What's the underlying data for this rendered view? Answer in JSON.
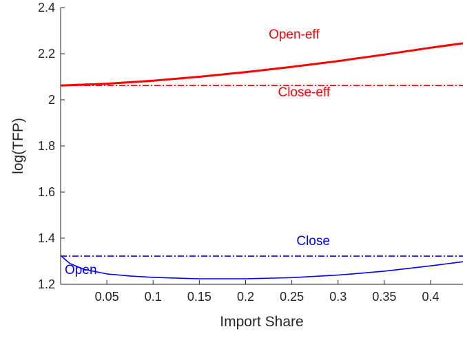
{
  "chart_data": {
    "type": "line",
    "xlabel": "Import Share",
    "ylabel": "log(TFP)",
    "xlim": [
      0.0,
      0.435
    ],
    "ylim": [
      1.2,
      2.4
    ],
    "xticks": [
      0.05,
      0.1,
      0.15,
      0.2,
      0.25,
      0.3,
      0.35,
      0.4
    ],
    "xtick_labels": [
      "0.05",
      "0.1",
      "0.15",
      "0.2",
      "0.25",
      "0.3",
      "0.35",
      "0.4"
    ],
    "yticks": [
      1.2,
      1.4,
      1.6,
      1.8,
      2.0,
      2.2,
      2.4
    ],
    "ytick_labels": [
      "1.2",
      "1.4",
      "1.6",
      "1.8",
      "2",
      "2.2",
      "2.4"
    ],
    "grid": false,
    "series": [
      {
        "name": "Open-eff",
        "color": "#ff0000",
        "style": "solid",
        "x": [
          0.0,
          0.05,
          0.1,
          0.15,
          0.2,
          0.25,
          0.3,
          0.35,
          0.4,
          0.435
        ],
        "y": [
          2.062,
          2.07,
          2.083,
          2.1,
          2.12,
          2.143,
          2.168,
          2.196,
          2.226,
          2.245
        ]
      },
      {
        "name": "Close-eff",
        "color": "#ff0000",
        "style": "dashdot",
        "x": [
          0.0,
          0.435
        ],
        "y": [
          2.062,
          2.062
        ]
      },
      {
        "name": "Close",
        "color": "#0000ff",
        "style": "dashdot",
        "x": [
          0.0,
          0.435
        ],
        "y": [
          1.322,
          1.322
        ]
      },
      {
        "name": "Open",
        "color": "#0000ff",
        "style": "solid",
        "x": [
          0.0,
          0.01,
          0.025,
          0.05,
          0.075,
          0.1,
          0.15,
          0.2,
          0.25,
          0.3,
          0.35,
          0.4,
          0.435
        ],
        "y": [
          1.325,
          1.29,
          1.265,
          1.245,
          1.236,
          1.23,
          1.224,
          1.224,
          1.229,
          1.24,
          1.257,
          1.28,
          1.298
        ]
      }
    ],
    "annotations": [
      {
        "text": "Open-eff",
        "x": 0.225,
        "y": 2.265,
        "color": "#ff0000"
      },
      {
        "text": "Close-eff",
        "x": 0.235,
        "y": 2.015,
        "color": "#ff0000"
      },
      {
        "text": "Close",
        "x": 0.255,
        "y": 1.37,
        "color": "#0000ff"
      },
      {
        "text": "Open",
        "x": 0.0045,
        "y": 1.245,
        "color": "#0000ff"
      }
    ]
  }
}
